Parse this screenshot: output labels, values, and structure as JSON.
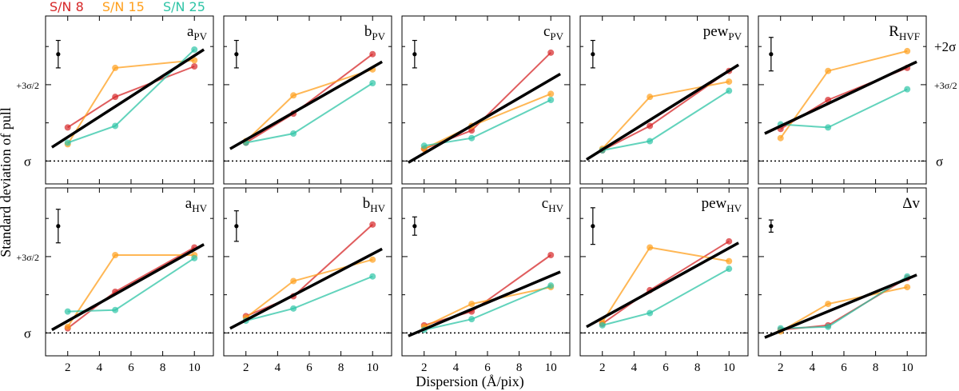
{
  "figure": {
    "ylabel": "Standard deviation of pull",
    "xlabel": "Dispersion (Å/pix)",
    "legend": [
      {
        "label": "S/N 8",
        "color": "#d62728"
      },
      {
        "label": "S/N 15",
        "color": "#ff9f1c"
      },
      {
        "label": "S/N 25",
        "color": "#2ec4a6"
      }
    ],
    "ytick_labels": {
      "sigma": "σ",
      "three_halves": "+3σ/2",
      "two": "+2σ"
    },
    "right_axis_note": "R_HVF panel has right-side y tick labels"
  },
  "chart_data": [
    {
      "type": "line",
      "panel": "a_PV",
      "title": "a",
      "subscript": "PV",
      "x": [
        2,
        5,
        10
      ],
      "ylim": [
        0.85,
        1.95
      ],
      "xlim": [
        0.6,
        11.2
      ],
      "series": [
        {
          "name": "S/N 8",
          "values": [
            1.22,
            1.42,
            1.62
          ]
        },
        {
          "name": "S/N 15",
          "values": [
            1.11,
            1.61,
            1.66
          ]
        },
        {
          "name": "S/N 25",
          "values": [
            1.12,
            1.23,
            1.73
          ]
        }
      ],
      "fit": {
        "x": [
          1,
          10.6
        ],
        "y": [
          1.09,
          1.73
        ]
      },
      "errorbar": {
        "x": 1.4,
        "y": 1.7,
        "err": 0.09
      }
    },
    {
      "type": "line",
      "panel": "b_PV",
      "title": "b",
      "subscript": "PV",
      "x": [
        2,
        5,
        10
      ],
      "ylim": [
        0.85,
        1.95
      ],
      "xlim": [
        0.6,
        11.2
      ],
      "series": [
        {
          "name": "S/N 8",
          "values": [
            1.12,
            1.31,
            1.7
          ]
        },
        {
          "name": "S/N 15",
          "values": [
            1.13,
            1.43,
            1.6
          ]
        },
        {
          "name": "S/N 25",
          "values": [
            1.12,
            1.18,
            1.51
          ]
        }
      ],
      "fit": {
        "x": [
          1,
          10.6
        ],
        "y": [
          1.08,
          1.65
        ]
      },
      "errorbar": {
        "x": 1.4,
        "y": 1.7,
        "err": 0.09
      }
    },
    {
      "type": "line",
      "panel": "c_PV",
      "title": "c",
      "subscript": "PV",
      "x": [
        2,
        5,
        10
      ],
      "ylim": [
        0.85,
        1.95
      ],
      "xlim": [
        0.6,
        11.2
      ],
      "series": [
        {
          "name": "S/N 8",
          "values": [
            1.08,
            1.2,
            1.71
          ]
        },
        {
          "name": "S/N 15",
          "values": [
            1.08,
            1.23,
            1.44
          ]
        },
        {
          "name": "S/N 25",
          "values": [
            1.1,
            1.15,
            1.4
          ]
        }
      ],
      "fit": {
        "x": [
          1,
          10.6
        ],
        "y": [
          0.99,
          1.57
        ]
      },
      "errorbar": {
        "x": 1.4,
        "y": 1.7,
        "err": 0.09
      }
    },
    {
      "type": "line",
      "panel": "pew_PV",
      "title": "pew",
      "subscript": "PV",
      "x": [
        2,
        5,
        10
      ],
      "ylim": [
        0.85,
        1.95
      ],
      "xlim": [
        0.6,
        11.2
      ],
      "series": [
        {
          "name": "S/N 8",
          "values": [
            1.07,
            1.23,
            1.59
          ]
        },
        {
          "name": "S/N 15",
          "values": [
            1.08,
            1.42,
            1.52
          ]
        },
        {
          "name": "S/N 25",
          "values": [
            1.07,
            1.13,
            1.46
          ]
        }
      ],
      "fit": {
        "x": [
          1,
          10.6
        ],
        "y": [
          1.01,
          1.63
        ]
      },
      "errorbar": {
        "x": 1.4,
        "y": 1.7,
        "err": 0.09
      }
    },
    {
      "type": "line",
      "panel": "R_HVF",
      "title": "R",
      "subscript": "HVF",
      "x": [
        2,
        5,
        10
      ],
      "ylim": [
        0.85,
        1.95
      ],
      "xlim": [
        0.6,
        11.2
      ],
      "series": [
        {
          "name": "S/N 8",
          "values": [
            1.21,
            1.4,
            1.61
          ]
        },
        {
          "name": "S/N 15",
          "values": [
            1.15,
            1.59,
            1.72
          ]
        },
        {
          "name": "S/N 25",
          "values": [
            1.24,
            1.22,
            1.47
          ]
        }
      ],
      "fit": {
        "x": [
          1,
          10.6
        ],
        "y": [
          1.18,
          1.65
        ]
      },
      "errorbar": {
        "x": 1.4,
        "y": 1.7,
        "err": 0.11
      }
    },
    {
      "type": "line",
      "panel": "a_HV",
      "title": "a",
      "subscript": "HV",
      "x": [
        2,
        5,
        10
      ],
      "ylim": [
        0.85,
        1.95
      ],
      "xlim": [
        0.6,
        11.2
      ],
      "series": [
        {
          "name": "S/N 8",
          "values": [
            1.03,
            1.27,
            1.56
          ]
        },
        {
          "name": "S/N 15",
          "values": [
            1.04,
            1.51,
            1.51
          ]
        },
        {
          "name": "S/N 25",
          "values": [
            1.14,
            1.15,
            1.49
          ]
        }
      ],
      "fit": {
        "x": [
          1,
          10.6
        ],
        "y": [
          1.02,
          1.58
        ]
      },
      "errorbar": {
        "x": 1.4,
        "y": 1.7,
        "err": 0.11
      }
    },
    {
      "type": "line",
      "panel": "b_HV",
      "title": "b",
      "subscript": "HV",
      "x": [
        2,
        5,
        10
      ],
      "ylim": [
        0.85,
        1.95
      ],
      "xlim": [
        0.6,
        11.2
      ],
      "series": [
        {
          "name": "S/N 8",
          "values": [
            1.11,
            1.24,
            1.71
          ]
        },
        {
          "name": "S/N 15",
          "values": [
            1.1,
            1.34,
            1.48
          ]
        },
        {
          "name": "S/N 25",
          "values": [
            1.08,
            1.16,
            1.37
          ]
        }
      ],
      "fit": {
        "x": [
          1,
          10.6
        ],
        "y": [
          1.03,
          1.55
        ]
      },
      "errorbar": {
        "x": 1.4,
        "y": 1.7,
        "err": 0.1
      }
    },
    {
      "type": "line",
      "panel": "c_HV",
      "title": "c",
      "subscript": "HV",
      "x": [
        2,
        5,
        10
      ],
      "ylim": [
        0.85,
        1.95
      ],
      "xlim": [
        0.6,
        11.2
      ],
      "series": [
        {
          "name": "S/N 8",
          "values": [
            1.05,
            1.14,
            1.51
          ]
        },
        {
          "name": "S/N 15",
          "values": [
            1.04,
            1.19,
            1.3
          ]
        },
        {
          "name": "S/N 25",
          "values": [
            1.02,
            1.09,
            1.31
          ]
        }
      ],
      "fit": {
        "x": [
          1,
          10.6
        ],
        "y": [
          0.98,
          1.4
        ]
      },
      "errorbar": {
        "x": 1.4,
        "y": 1.7,
        "err": 0.06
      }
    },
    {
      "type": "line",
      "panel": "pew_HV",
      "title": "pew",
      "subscript": "HV",
      "x": [
        2,
        5,
        10
      ],
      "ylim": [
        0.85,
        1.95
      ],
      "xlim": [
        0.6,
        11.2
      ],
      "series": [
        {
          "name": "S/N 8",
          "values": [
            1.06,
            1.28,
            1.6
          ]
        },
        {
          "name": "S/N 15",
          "values": [
            1.07,
            1.56,
            1.47
          ]
        },
        {
          "name": "S/N 25",
          "values": [
            1.05,
            1.13,
            1.42
          ]
        }
      ],
      "fit": {
        "x": [
          1,
          10.6
        ],
        "y": [
          1.04,
          1.59
        ]
      },
      "errorbar": {
        "x": 1.4,
        "y": 1.7,
        "err": 0.12
      }
    },
    {
      "type": "line",
      "panel": "dv",
      "title": "Δv",
      "subscript": "",
      "x": [
        2,
        5,
        10
      ],
      "ylim": [
        0.85,
        1.95
      ],
      "xlim": [
        0.6,
        11.2
      ],
      "series": [
        {
          "name": "S/N 8",
          "values": [
            1.02,
            1.05,
            1.36
          ]
        },
        {
          "name": "S/N 15",
          "values": [
            1.01,
            1.19,
            1.3
          ]
        },
        {
          "name": "S/N 25",
          "values": [
            1.03,
            1.04,
            1.37
          ]
        }
      ],
      "fit": {
        "x": [
          1,
          10.6
        ],
        "y": [
          0.97,
          1.38
        ]
      },
      "errorbar": {
        "x": 1.4,
        "y": 1.7,
        "err": 0.04
      }
    }
  ]
}
